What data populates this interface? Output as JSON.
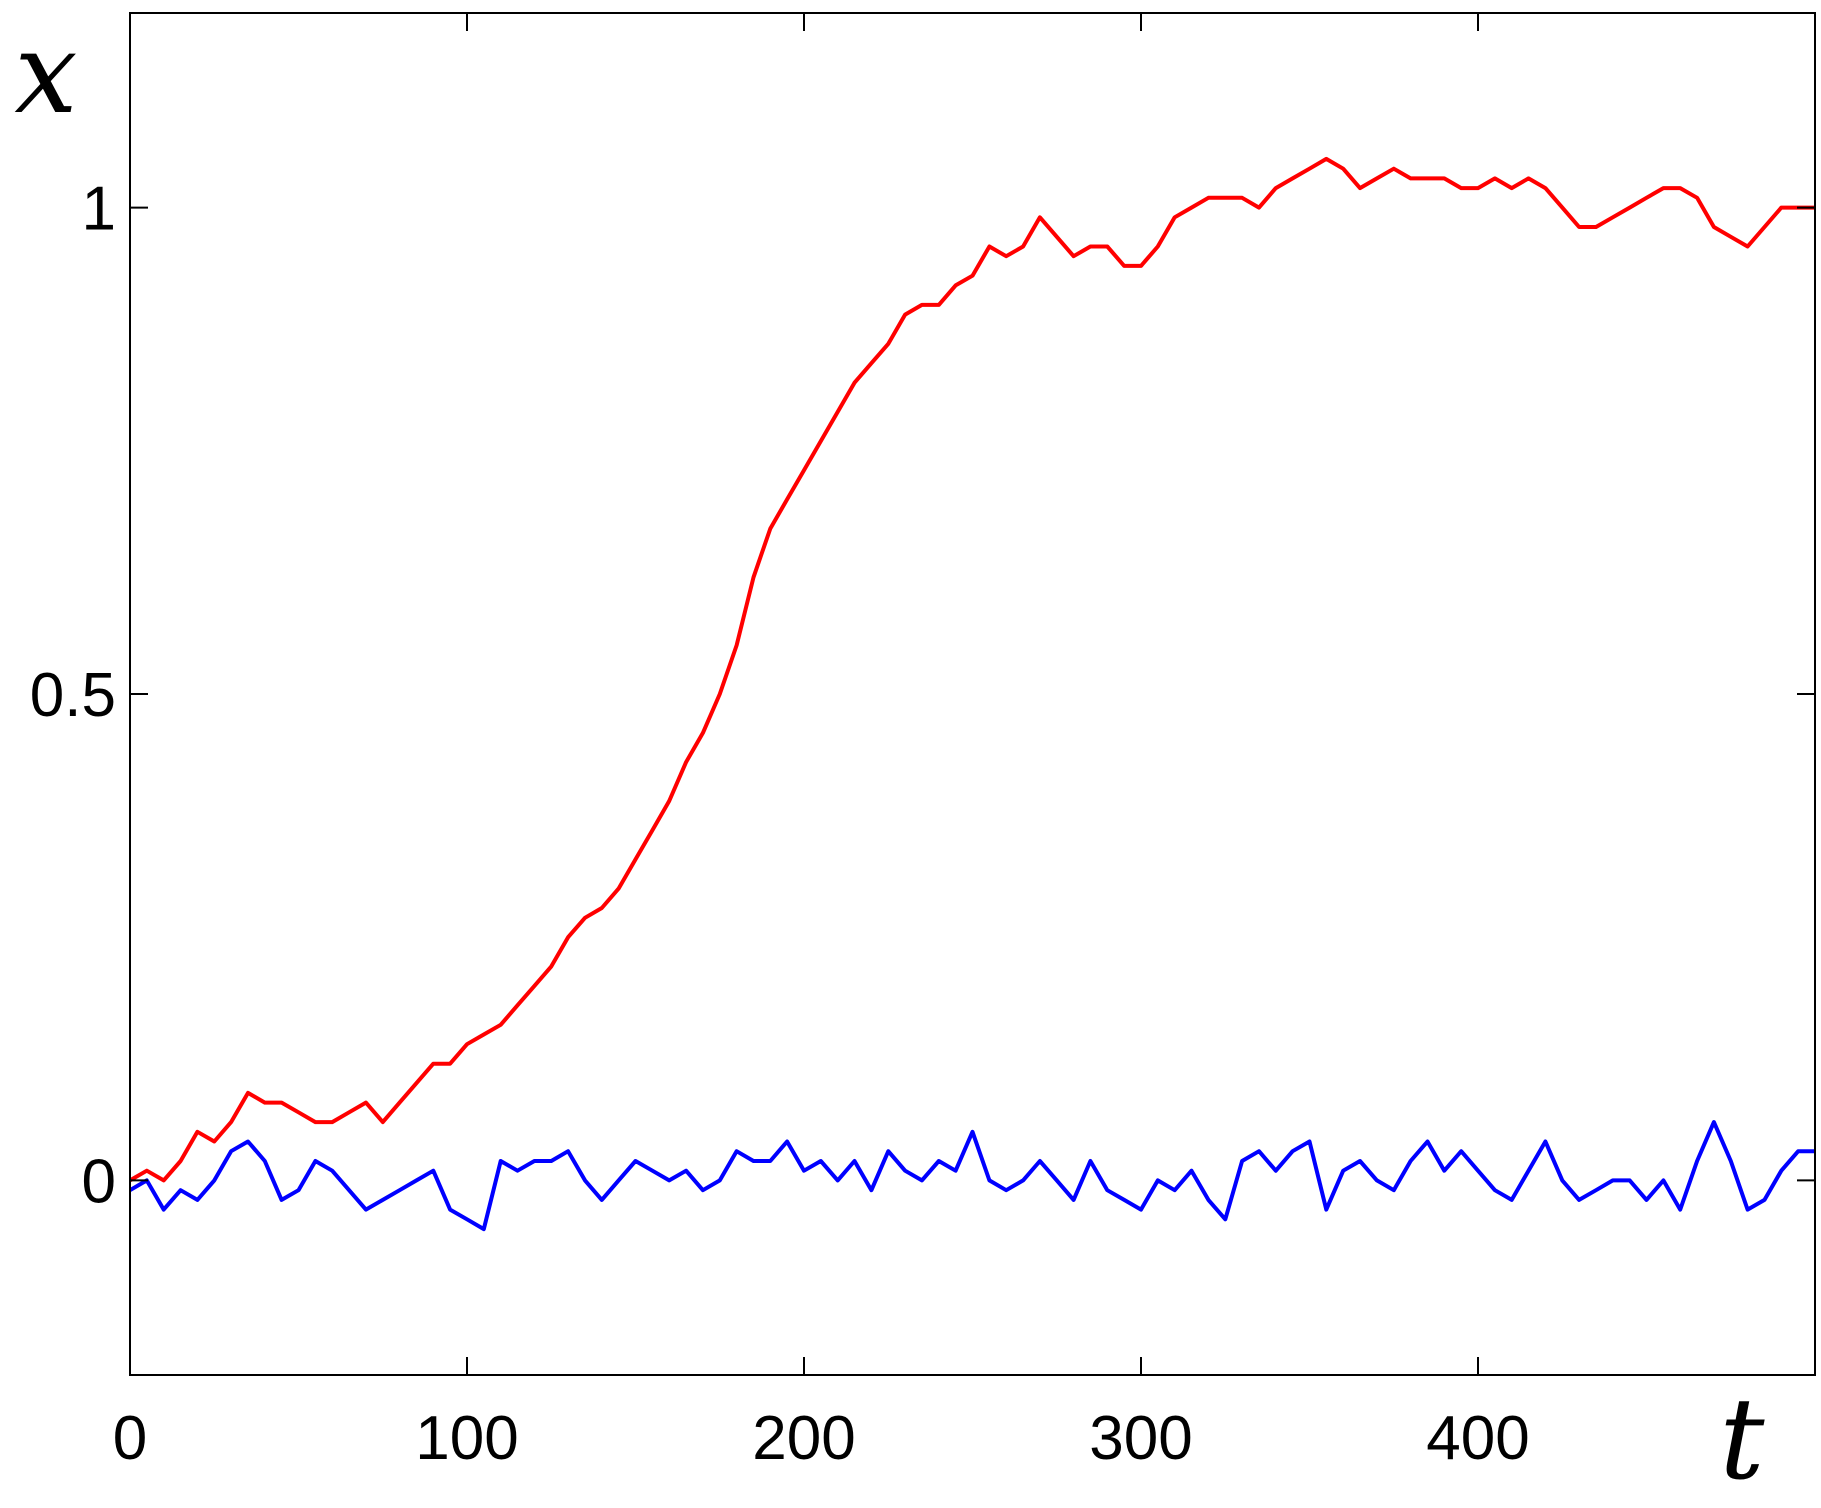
{
  "chart_data": {
    "type": "line",
    "xlabel": "t",
    "ylabel": "x",
    "xlim": [
      0,
      500
    ],
    "ylim": [
      -0.2,
      1.2
    ],
    "x_ticks": [
      0,
      100,
      200,
      300,
      400
    ],
    "y_ticks": [
      0,
      0.5,
      1
    ],
    "x_tick_labels": [
      "0",
      "100",
      "200",
      "300",
      "400"
    ],
    "y_tick_labels": [
      "0",
      "0.5",
      "1"
    ],
    "grid": false,
    "series": [
      {
        "color": "#ff0000",
        "x": [
          0,
          5,
          10,
          15,
          20,
          25,
          30,
          35,
          40,
          45,
          50,
          55,
          60,
          65,
          70,
          75,
          80,
          85,
          90,
          95,
          100,
          105,
          110,
          115,
          120,
          125,
          130,
          135,
          140,
          145,
          150,
          155,
          160,
          165,
          170,
          175,
          180,
          185,
          190,
          195,
          200,
          205,
          210,
          215,
          220,
          225,
          230,
          235,
          240,
          245,
          250,
          255,
          260,
          265,
          270,
          275,
          280,
          285,
          290,
          295,
          300,
          305,
          310,
          315,
          320,
          325,
          330,
          335,
          340,
          345,
          350,
          355,
          360,
          365,
          370,
          375,
          380,
          385,
          390,
          395,
          400,
          405,
          410,
          415,
          420,
          425,
          430,
          435,
          440,
          445,
          450,
          455,
          460,
          465,
          470,
          475,
          480,
          485,
          490,
          495,
          500
        ],
        "y": [
          0.0,
          0.01,
          0.0,
          0.02,
          0.05,
          0.04,
          0.06,
          0.09,
          0.08,
          0.08,
          0.07,
          0.06,
          0.06,
          0.07,
          0.08,
          0.06,
          0.08,
          0.1,
          0.12,
          0.12,
          0.14,
          0.15,
          0.16,
          0.18,
          0.2,
          0.22,
          0.25,
          0.27,
          0.28,
          0.3,
          0.33,
          0.36,
          0.39,
          0.43,
          0.46,
          0.5,
          0.55,
          0.62,
          0.67,
          0.7,
          0.73,
          0.76,
          0.79,
          0.82,
          0.84,
          0.86,
          0.89,
          0.9,
          0.9,
          0.92,
          0.93,
          0.96,
          0.95,
          0.96,
          0.99,
          0.97,
          0.95,
          0.96,
          0.96,
          0.94,
          0.94,
          0.96,
          0.99,
          1.0,
          1.01,
          1.01,
          1.01,
          1.0,
          1.02,
          1.03,
          1.04,
          1.05,
          1.04,
          1.02,
          1.03,
          1.04,
          1.03,
          1.03,
          1.03,
          1.02,
          1.02,
          1.03,
          1.02,
          1.03,
          1.02,
          1.0,
          0.98,
          0.98,
          0.99,
          1.0,
          1.01,
          1.02,
          1.02,
          1.01,
          0.98,
          0.97,
          0.96,
          0.98,
          1.0,
          1.0,
          1.0
        ]
      },
      {
        "color": "#0000ff",
        "x": [
          0,
          5,
          10,
          15,
          20,
          25,
          30,
          35,
          40,
          45,
          50,
          55,
          60,
          65,
          70,
          75,
          80,
          85,
          90,
          95,
          100,
          105,
          110,
          115,
          120,
          125,
          130,
          135,
          140,
          145,
          150,
          155,
          160,
          165,
          170,
          175,
          180,
          185,
          190,
          195,
          200,
          205,
          210,
          215,
          220,
          225,
          230,
          235,
          240,
          245,
          250,
          255,
          260,
          265,
          270,
          275,
          280,
          285,
          290,
          295,
          300,
          305,
          310,
          315,
          320,
          325,
          330,
          335,
          340,
          345,
          350,
          355,
          360,
          365,
          370,
          375,
          380,
          385,
          390,
          395,
          400,
          405,
          410,
          415,
          420,
          425,
          430,
          435,
          440,
          445,
          450,
          455,
          460,
          465,
          470,
          475,
          480,
          485,
          490,
          495,
          500
        ],
        "y": [
          -0.01,
          0.0,
          -0.03,
          -0.01,
          -0.02,
          0.0,
          0.03,
          0.04,
          0.02,
          -0.02,
          -0.01,
          0.02,
          0.01,
          -0.01,
          -0.03,
          -0.02,
          -0.01,
          0.0,
          0.01,
          -0.03,
          -0.04,
          -0.05,
          0.02,
          0.01,
          0.02,
          0.02,
          0.03,
          0.0,
          -0.02,
          0.0,
          0.02,
          0.01,
          0.0,
          0.01,
          -0.01,
          0.0,
          0.03,
          0.02,
          0.02,
          0.04,
          0.01,
          0.02,
          0.0,
          0.02,
          -0.01,
          0.03,
          0.01,
          0.0,
          0.02,
          0.01,
          0.05,
          0.0,
          -0.01,
          0.0,
          0.02,
          0.0,
          -0.02,
          0.02,
          -0.01,
          -0.02,
          -0.03,
          0.0,
          -0.01,
          0.01,
          -0.02,
          -0.04,
          0.02,
          0.03,
          0.01,
          0.03,
          0.04,
          -0.03,
          0.01,
          0.02,
          0.0,
          -0.01,
          0.02,
          0.04,
          0.01,
          0.03,
          0.01,
          -0.01,
          -0.02,
          0.01,
          0.04,
          0.0,
          -0.02,
          -0.01,
          0.0,
          0.0,
          -0.02,
          0.0,
          -0.03,
          0.02,
          0.06,
          0.02,
          -0.03,
          -0.02,
          0.01,
          0.03,
          0.03
        ]
      }
    ]
  }
}
